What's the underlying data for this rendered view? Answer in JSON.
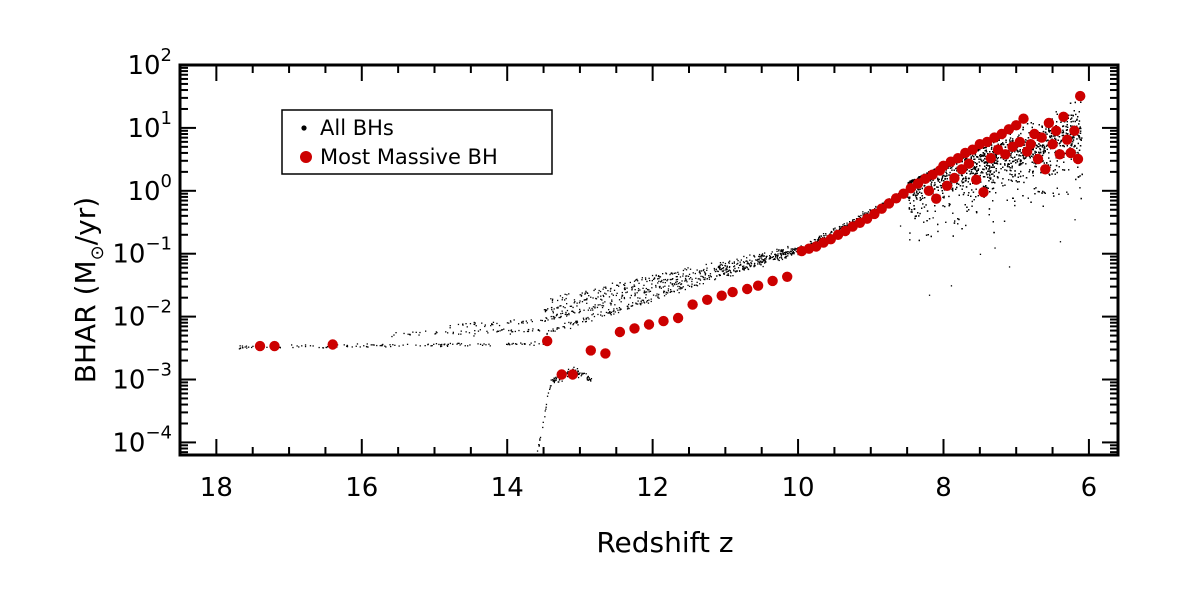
{
  "chart_data": {
    "type": "scatter",
    "title": "",
    "xlabel": "Redshift z",
    "ylabel_prefix": "BHAR (M",
    "ylabel_suffix": "/yr)",
    "ylabel_unit_symbol": "⊙",
    "xlim": [
      18.5,
      5.6
    ],
    "ylim_log10": [
      -4.2,
      2.0
    ],
    "yscale": "log",
    "x_ticks": [
      {
        "value": 18,
        "label": "18"
      },
      {
        "value": 16,
        "label": "16"
      },
      {
        "value": 14,
        "label": "14"
      },
      {
        "value": 12,
        "label": "12"
      },
      {
        "value": 10,
        "label": "10"
      },
      {
        "value": 8,
        "label": "8"
      },
      {
        "value": 6,
        "label": "6"
      }
    ],
    "y_ticks": [
      {
        "exp": 2,
        "base": "10",
        "power": "2"
      },
      {
        "exp": 1,
        "base": "10",
        "power": "1"
      },
      {
        "exp": 0,
        "base": "10",
        "power": "0"
      },
      {
        "exp": -1,
        "base": "10",
        "power": "−1"
      },
      {
        "exp": -2,
        "base": "10",
        "power": "−2"
      },
      {
        "exp": -3,
        "base": "10",
        "power": "−3"
      },
      {
        "exp": -4,
        "base": "10",
        "power": "−4"
      }
    ],
    "legend": {
      "position": "top-left",
      "entries": [
        {
          "label": "All BHs",
          "color": "#000000",
          "marker": "small-dot"
        },
        {
          "label": "Most Massive BH",
          "color": "#cc0000",
          "marker": "large-dot"
        }
      ]
    },
    "series": [
      {
        "name": "Most Massive BH",
        "color": "#cc0000",
        "points": [
          [
            17.4,
            0.0034
          ],
          [
            17.2,
            0.0034
          ],
          [
            16.4,
            0.0036
          ],
          [
            13.45,
            0.0041
          ],
          [
            13.25,
            0.0012
          ],
          [
            13.1,
            0.0012
          ],
          [
            12.85,
            0.0029
          ],
          [
            12.65,
            0.0026
          ],
          [
            12.45,
            0.0057
          ],
          [
            12.25,
            0.0065
          ],
          [
            12.05,
            0.0075
          ],
          [
            11.85,
            0.0085
          ],
          [
            11.65,
            0.0095
          ],
          [
            11.45,
            0.0155
          ],
          [
            11.25,
            0.0185
          ],
          [
            11.05,
            0.0215
          ],
          [
            10.9,
            0.0245
          ],
          [
            10.7,
            0.0275
          ],
          [
            10.55,
            0.031
          ],
          [
            10.35,
            0.037
          ],
          [
            10.15,
            0.043
          ],
          [
            9.95,
            0.11
          ],
          [
            9.85,
            0.12
          ],
          [
            9.75,
            0.13
          ],
          [
            9.65,
            0.15
          ],
          [
            9.55,
            0.17
          ],
          [
            9.45,
            0.2
          ],
          [
            9.35,
            0.23
          ],
          [
            9.25,
            0.27
          ],
          [
            9.15,
            0.31
          ],
          [
            9.05,
            0.36
          ],
          [
            8.95,
            0.43
          ],
          [
            8.85,
            0.52
          ],
          [
            8.75,
            0.63
          ],
          [
            8.65,
            0.76
          ],
          [
            8.55,
            0.9
          ],
          [
            8.45,
            1.1
          ],
          [
            8.35,
            1.3
          ],
          [
            8.25,
            1.55
          ],
          [
            8.2,
            1.0
          ],
          [
            8.15,
            1.8
          ],
          [
            8.1,
            0.75
          ],
          [
            8.05,
            2.1
          ],
          [
            8.0,
            2.5
          ],
          [
            7.95,
            1.2
          ],
          [
            7.9,
            2.9
          ],
          [
            7.85,
            1.6
          ],
          [
            7.8,
            3.3
          ],
          [
            7.75,
            2.2
          ],
          [
            7.7,
            4.0
          ],
          [
            7.65,
            2.7
          ],
          [
            7.6,
            4.5
          ],
          [
            7.55,
            1.5
          ],
          [
            7.5,
            5.5
          ],
          [
            7.45,
            0.95
          ],
          [
            7.4,
            6.0
          ],
          [
            7.35,
            3.3
          ],
          [
            7.3,
            7.0
          ],
          [
            7.25,
            4.5
          ],
          [
            7.2,
            8.0
          ],
          [
            7.15,
            3.8
          ],
          [
            7.1,
            9.5
          ],
          [
            7.05,
            5.0
          ],
          [
            7.0,
            11.0
          ],
          [
            6.95,
            6.0
          ],
          [
            6.9,
            14.0
          ],
          [
            6.85,
            4.2
          ],
          [
            6.8,
            5.5
          ],
          [
            6.75,
            8.0
          ],
          [
            6.7,
            3.2
          ],
          [
            6.65,
            7.0
          ],
          [
            6.6,
            2.2
          ],
          [
            6.55,
            12.0
          ],
          [
            6.5,
            5.5
          ],
          [
            6.45,
            9.0
          ],
          [
            6.4,
            3.8
          ],
          [
            6.35,
            15.0
          ],
          [
            6.3,
            6.5
          ],
          [
            6.25,
            4.0
          ],
          [
            6.2,
            9.0
          ],
          [
            6.15,
            3.2
          ],
          [
            6.12,
            32.0
          ]
        ]
      }
    ]
  }
}
